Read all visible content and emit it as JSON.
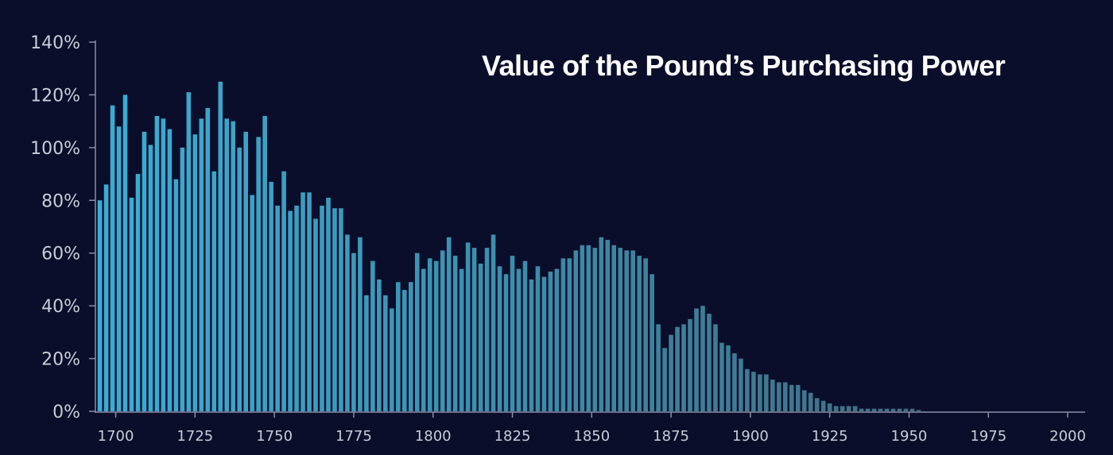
{
  "chart_data": {
    "type": "bar",
    "title": "Value of the Pound’s Purchasing Power",
    "xlabel": "",
    "ylabel": "",
    "x_start": 1695,
    "x_step": 2,
    "values": [
      80,
      86,
      116,
      108,
      120,
      81,
      90,
      106,
      101,
      112,
      111,
      107,
      88,
      100,
      121,
      105,
      111,
      115,
      91,
      125,
      111,
      110,
      100,
      106,
      82,
      104,
      112,
      87,
      78,
      91,
      76,
      78,
      83,
      83,
      73,
      78,
      81,
      77,
      77,
      67,
      60,
      66,
      44,
      57,
      50,
      44,
      39,
      49,
      46,
      49,
      60,
      54,
      58,
      57,
      61,
      66,
      59,
      54,
      64,
      62,
      56,
      62,
      67,
      55,
      52,
      59,
      54,
      57,
      50,
      55,
      51,
      53,
      54,
      58,
      58,
      61,
      63,
      63,
      62,
      66,
      65,
      63,
      62,
      61,
      61,
      59,
      58,
      52,
      33,
      24,
      29,
      32,
      33,
      35,
      39,
      40,
      37,
      33,
      26,
      25,
      22,
      20,
      16,
      15,
      14,
      14,
      12,
      11,
      11,
      10,
      10,
      8,
      7,
      5,
      4,
      3,
      2,
      2,
      2,
      2,
      1,
      1,
      1,
      1,
      1,
      1,
      1,
      1,
      1,
      0.5
    ],
    "yticks": [
      "0%",
      "20%",
      "40%",
      "60%",
      "80%",
      "100%",
      "120%",
      "140%"
    ],
    "ytick_values": [
      0,
      20,
      40,
      60,
      80,
      100,
      120,
      140
    ],
    "xticks": [
      "1700",
      "1725",
      "1750",
      "1775",
      "1800",
      "1825",
      "1850",
      "1875",
      "1900",
      "1925",
      "1950",
      "1975",
      "2000"
    ],
    "xtick_values": [
      1700,
      1725,
      1750,
      1775,
      1800,
      1825,
      1850,
      1875,
      1900,
      1925,
      1950,
      1975,
      2000
    ],
    "ylim": [
      0,
      140
    ],
    "xlim": [
      1693.6,
      2005.5
    ],
    "grid": false,
    "legend": "none",
    "colors": {
      "background": "#0b0e2a",
      "bar_start": "#3aaed6",
      "bar_end": "#3f6d82",
      "axis": "#8a8fa8",
      "tick_text": "#c9ccd8",
      "title": "#ffffff"
    }
  }
}
